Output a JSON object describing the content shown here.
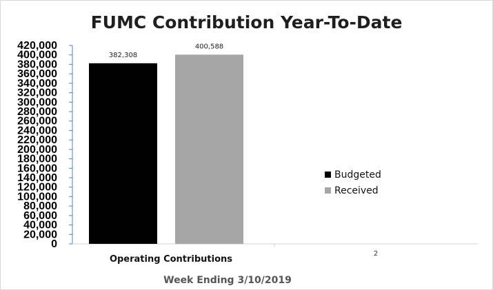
{
  "chart_data": {
    "type": "bar",
    "title": "FUMC Contribution Year-To-Date",
    "xlabel": "Week Ending 3/10/2019",
    "ylabel": "",
    "categories": [
      "Operating Contributions",
      "2"
    ],
    "series": [
      {
        "name": "Budgeted",
        "color": "#000000",
        "values": [
          382308,
          null
        ],
        "labels": [
          "382,308",
          ""
        ]
      },
      {
        "name": "Received",
        "color": "#a6a6a6",
        "values": [
          400588,
          null
        ],
        "labels": [
          "400,588",
          ""
        ]
      }
    ],
    "ylim": [
      0,
      420000
    ],
    "yticks": [
      "0",
      "20,000",
      "40,000",
      "60,000",
      "80,000",
      "100,000",
      "120,000",
      "140,000",
      "160,000",
      "180,000",
      "200,000",
      "220,000",
      "240,000",
      "260,000",
      "280,000",
      "300,000",
      "320,000",
      "340,000",
      "360,000",
      "380,000",
      "400,000",
      "420,000"
    ],
    "grid": false,
    "legend_position": "right"
  }
}
